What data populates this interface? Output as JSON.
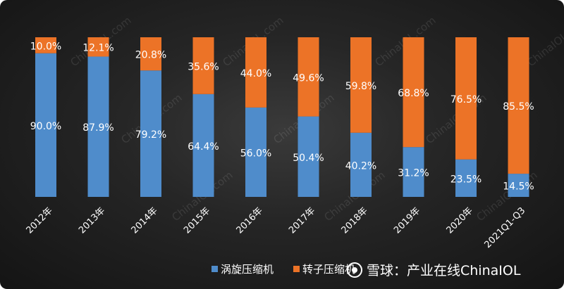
{
  "chart_data": {
    "type": "bar",
    "stacked": true,
    "percent_stacked": true,
    "categories": [
      "2012年",
      "2013年",
      "2014年",
      "2015年",
      "2016年",
      "2017年",
      "2018年",
      "2019年",
      "2020年",
      "2021Q1-Q3"
    ],
    "series": [
      {
        "name": "涡旋压缩机",
        "color": "#4f8ccb",
        "values": [
          90.0,
          87.9,
          79.2,
          64.4,
          56.0,
          50.4,
          40.2,
          31.2,
          23.5,
          14.5
        ],
        "labels": [
          "90.0%",
          "87.9%",
          "79.2%",
          "64.4%",
          "56.0%",
          "50.4%",
          "40.2%",
          "31.2%",
          "23.5%",
          "14.5%"
        ]
      },
      {
        "name": "转子压缩机",
        "color": "#ec7327",
        "values": [
          10.0,
          12.1,
          20.8,
          35.6,
          44.0,
          49.6,
          59.8,
          68.8,
          76.5,
          85.5
        ],
        "labels": [
          "10.0%",
          "12.1%",
          "20.8%",
          "35.6%",
          "44.0%",
          "49.6%",
          "59.8%",
          "68.8%",
          "76.5%",
          "85.5%"
        ]
      }
    ],
    "ylim": [
      0,
      100
    ],
    "grid": false,
    "legend_position": "bottom",
    "background": "#222222"
  },
  "watermark": {
    "text": "雪球：产业在线ChinaIOL",
    "logo_icon": "snowball-logo-icon",
    "repeated_mark": "ChinaIOL.com"
  }
}
